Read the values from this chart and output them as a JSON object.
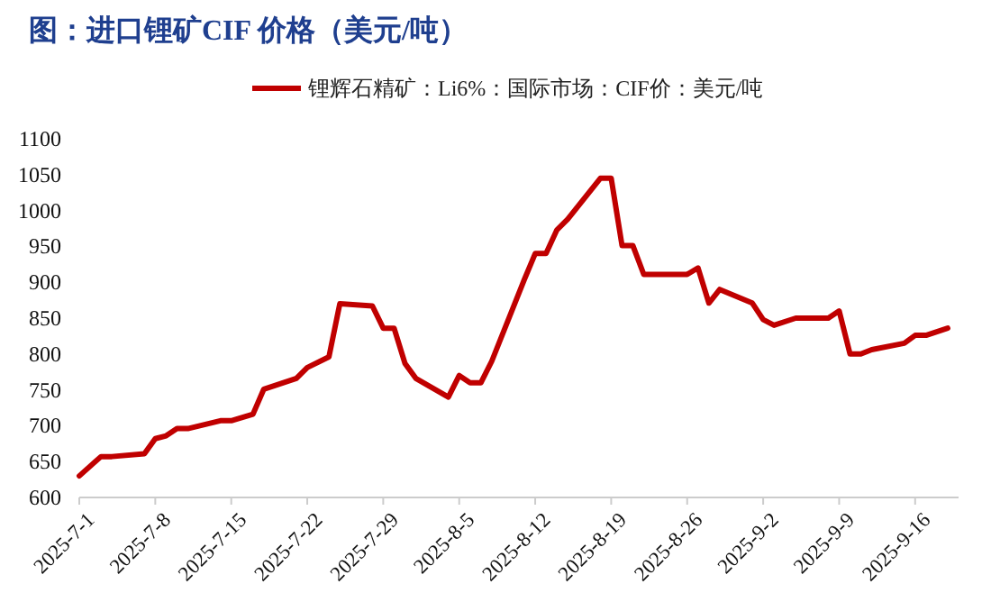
{
  "chart_data": {
    "type": "line",
    "title": "图：进口锂矿CIF 价格（美元/吨）",
    "legend": "top",
    "grid": false,
    "marker": "none",
    "line_style": "solid",
    "xlim": [
      "2025-07-01",
      "2025-09-20"
    ],
    "xticks": [
      {
        "value": "2025-07-01",
        "label": "2025-7-1"
      },
      {
        "value": "2025-07-08",
        "label": "2025-7-8"
      },
      {
        "value": "2025-07-15",
        "label": "2025-7-15"
      },
      {
        "value": "2025-07-22",
        "label": "2025-7-22"
      },
      {
        "value": "2025-07-29",
        "label": "2025-7-29"
      },
      {
        "value": "2025-08-05",
        "label": "2025-8-5"
      },
      {
        "value": "2025-08-12",
        "label": "2025-8-12"
      },
      {
        "value": "2025-08-19",
        "label": "2025-8-19"
      },
      {
        "value": "2025-08-26",
        "label": "2025-8-26"
      },
      {
        "value": "2025-09-02",
        "label": "2025-9-2"
      },
      {
        "value": "2025-09-09",
        "label": "2025-9-9"
      },
      {
        "value": "2025-09-16",
        "label": "2025-9-16"
      }
    ],
    "ylim": [
      600,
      1100
    ],
    "yticks": [
      600,
      650,
      700,
      750,
      800,
      850,
      900,
      950,
      1000,
      1050,
      1100
    ],
    "x": [
      "2025-07-01",
      "2025-07-03",
      "2025-07-04",
      "2025-07-07",
      "2025-07-08",
      "2025-07-09",
      "2025-07-10",
      "2025-07-11",
      "2025-07-14",
      "2025-07-15",
      "2025-07-17",
      "2025-07-18",
      "2025-07-21",
      "2025-07-22",
      "2025-07-24",
      "2025-07-25",
      "2025-07-28",
      "2025-07-29",
      "2025-07-30",
      "2025-07-31",
      "2025-08-01",
      "2025-08-04",
      "2025-08-05",
      "2025-08-06",
      "2025-08-07",
      "2025-08-08",
      "2025-08-11",
      "2025-08-12",
      "2025-08-13",
      "2025-08-14",
      "2025-08-15",
      "2025-08-18",
      "2025-08-19",
      "2025-08-20",
      "2025-08-21",
      "2025-08-22",
      "2025-08-26",
      "2025-08-27",
      "2025-08-28",
      "2025-08-29",
      "2025-09-01",
      "2025-09-02",
      "2025-09-03",
      "2025-09-05",
      "2025-09-08",
      "2025-09-09",
      "2025-09-10",
      "2025-09-11",
      "2025-09-12",
      "2025-09-15",
      "2025-09-16",
      "2025-09-17",
      "2025-09-19"
    ],
    "series": [
      {
        "name": "锂辉石精矿：Li6%：国际市场：CIF价：美元/吨",
        "color": "#c00000",
        "values": [
          630,
          657,
          657,
          661,
          682,
          686,
          696,
          696,
          707,
          707,
          716,
          751,
          766,
          781,
          796,
          870,
          867,
          836,
          836,
          787,
          766,
          740,
          770,
          760,
          760,
          790,
          904,
          940,
          940,
          973,
          988,
          1045,
          1045,
          951,
          951,
          911,
          911,
          920,
          871,
          890,
          871,
          848,
          840,
          850,
          850,
          860,
          800,
          800,
          806,
          815,
          826,
          826,
          836
        ]
      }
    ]
  }
}
